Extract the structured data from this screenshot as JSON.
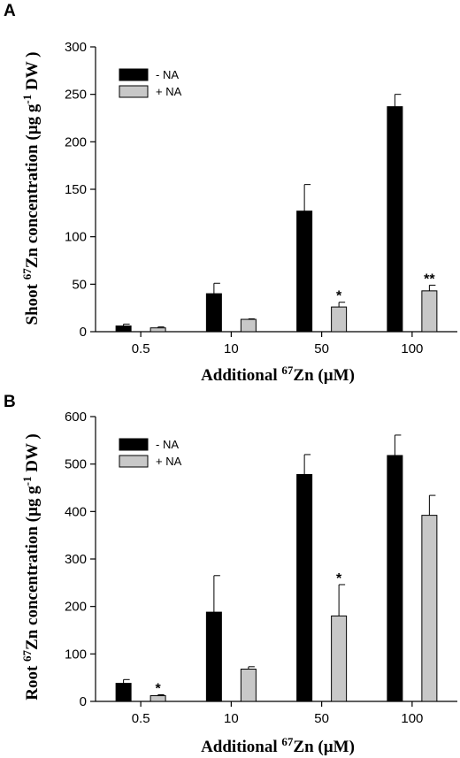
{
  "panels": [
    {
      "letter": "A",
      "ylabel_pre": "Shoot ",
      "ylabel_sup": "67",
      "ylabel_mid": "Zn concentration (µg g",
      "ylabel_sup2": "-1",
      "ylabel_post": " DW )",
      "xlabel_pre": "Additional ",
      "xlabel_sup": "67",
      "xlabel_post": "Zn (µM)"
    },
    {
      "letter": "B",
      "ylabel_pre": "Root ",
      "ylabel_sup": "67",
      "ylabel_mid": "Zn concentration (µg g",
      "ylabel_sup2": "-1",
      "ylabel_post": " DW )",
      "xlabel_pre": "Additional ",
      "xlabel_sup": "67",
      "xlabel_post": "Zn (µM)"
    }
  ],
  "chart_data": [
    {
      "type": "bar",
      "panel": "A",
      "categories": [
        "0.5",
        "10",
        "50",
        "100"
      ],
      "ylim": [
        0,
        300
      ],
      "yticks": [
        0,
        50,
        100,
        150,
        200,
        250,
        300
      ],
      "legend_position": "top-left",
      "series": [
        {
          "name": "- NA",
          "color": "#000000",
          "values": [
            6,
            40,
            127,
            237
          ],
          "errors": [
            2,
            11,
            28,
            13
          ],
          "significance": [
            "",
            "",
            "",
            ""
          ]
        },
        {
          "name": "+ NA",
          "color": "#c8c8c8",
          "values": [
            4,
            13,
            26,
            43
          ],
          "errors": [
            1,
            0.5,
            5,
            6
          ],
          "significance": [
            "",
            "",
            "*",
            "**"
          ]
        }
      ]
    },
    {
      "type": "bar",
      "panel": "B",
      "categories": [
        "0.5",
        "10",
        "50",
        "100"
      ],
      "ylim": [
        0,
        600
      ],
      "yticks": [
        0,
        100,
        200,
        300,
        400,
        500,
        600
      ],
      "legend_position": "top-left",
      "series": [
        {
          "name": "- NA",
          "color": "#000000",
          "values": [
            38,
            188,
            478,
            518
          ],
          "errors": [
            8,
            77,
            42,
            43
          ],
          "significance": [
            "",
            "",
            "",
            ""
          ]
        },
        {
          "name": "+ NA",
          "color": "#c8c8c8",
          "values": [
            12,
            68,
            180,
            392
          ],
          "errors": [
            2,
            5,
            66,
            42
          ],
          "significance": [
            "*",
            "",
            "*",
            ""
          ]
        }
      ]
    }
  ]
}
